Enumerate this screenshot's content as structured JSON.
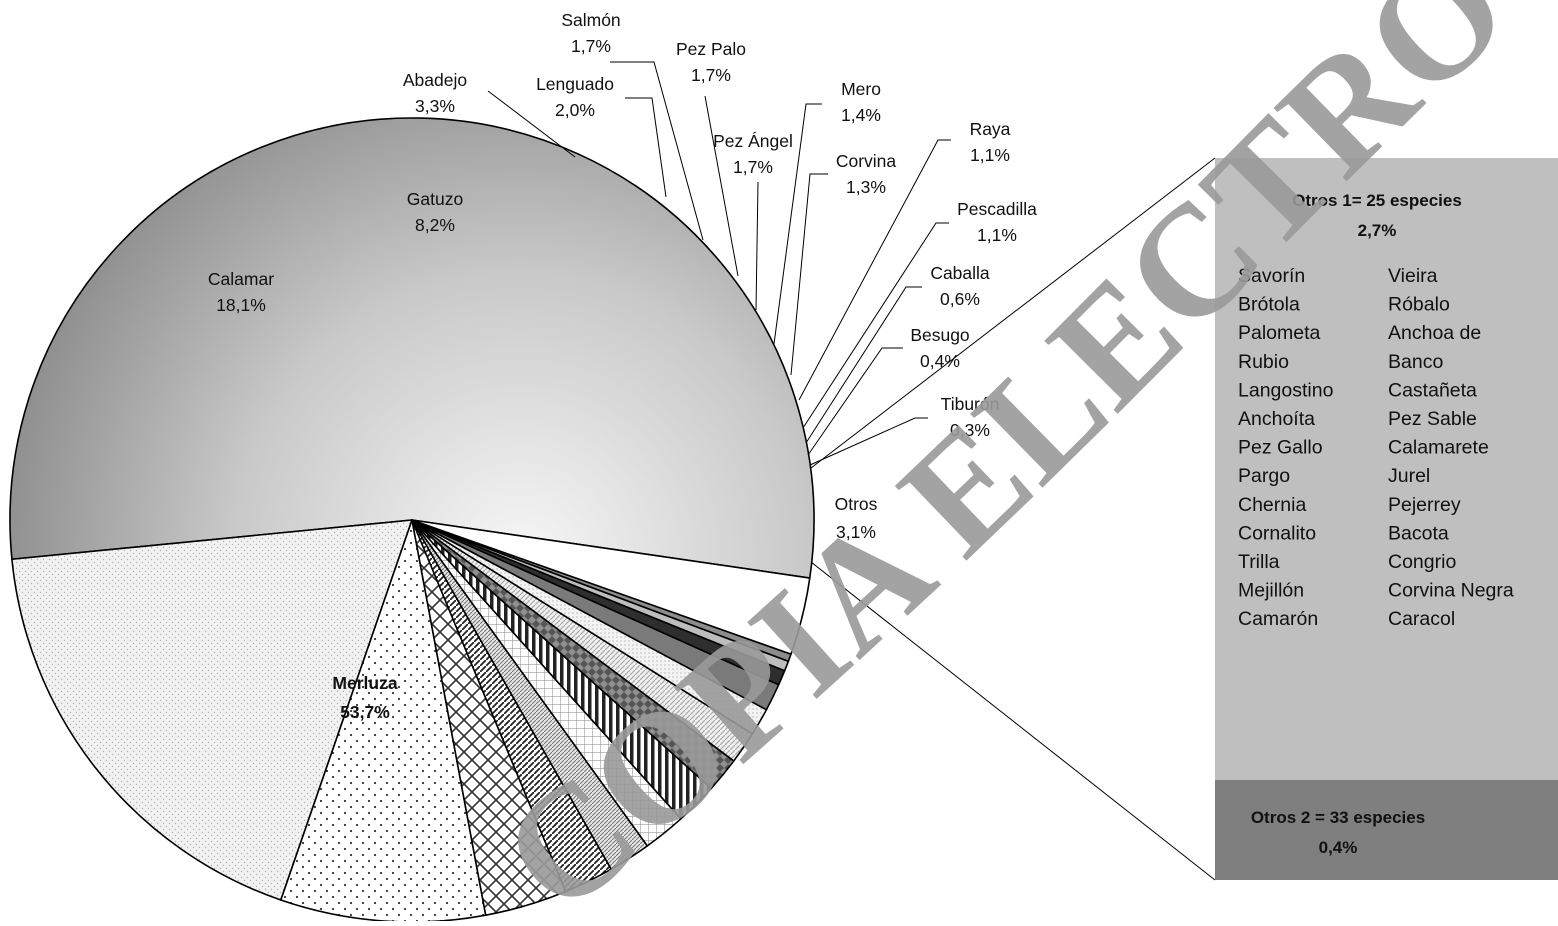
{
  "chart_data": {
    "type": "pie",
    "slices": [
      {
        "label": "Merluza",
        "value": 53.7,
        "display": "53,7%",
        "bold": true,
        "fill": "grad-merluza"
      },
      {
        "label": "Calamar",
        "value": 18.1,
        "display": "18,1%",
        "fill": "pat-fine-dots"
      },
      {
        "label": "Gatuzo",
        "value": 8.2,
        "display": "8,2%",
        "fill": "pat-sparse-dots"
      },
      {
        "label": "Abadejo",
        "value": 3.3,
        "display": "3,3%",
        "fill": "pat-cross-hatch"
      },
      {
        "label": "Lenguado",
        "value": 2.0,
        "display": "2,0%",
        "fill": "pat-diag-lines"
      },
      {
        "label": "Salmón",
        "value": 1.7,
        "display": "1,7%",
        "fill": "pat-dense-diag"
      },
      {
        "label": "Pez Palo",
        "value": 1.7,
        "display": "1,7%",
        "fill": "pat-light-grid"
      },
      {
        "label": "Pez Ángel",
        "value": 1.7,
        "display": "1,7%",
        "fill": "pat-vertical"
      },
      {
        "label": "Mero",
        "value": 1.4,
        "display": "1,4%",
        "fill": "pat-diamond"
      },
      {
        "label": "Corvina",
        "value": 1.3,
        "display": "1,3%",
        "fill": "pat-light-diag"
      },
      {
        "label": "Raya",
        "value": 1.1,
        "display": "1,1%",
        "fill": "pat-light-dots"
      },
      {
        "label": "Pescadilla",
        "value": 1.1,
        "display": "1,1%",
        "fill": "#7a7a7a"
      },
      {
        "label": "Caballa",
        "value": 0.6,
        "display": "0,6%",
        "fill": "#2e2e2e"
      },
      {
        "label": "Besugo",
        "value": 0.4,
        "display": "0,4%",
        "fill": "#bdbdbd"
      },
      {
        "label": "Tiburón",
        "value": 0.3,
        "display": "0,3%",
        "fill": "#8c8c8c"
      },
      {
        "label": "Otros",
        "value": 3.1,
        "display": "3,1%",
        "fill": "#ffffff"
      }
    ],
    "breakdown_box": {
      "otros1_title": "Otros 1= 25 especies",
      "otros1_pct": "2,7%",
      "otros1_color": "#bfbfbf",
      "species_col1": [
        "Savorín",
        "Brótola",
        "Palometa",
        "Rubio",
        "Langostino",
        "Anchoíta",
        "Pez Gallo",
        "Pargo",
        "Chernia",
        "Cornalito",
        "Trilla",
        "Mejillón",
        "Camarón"
      ],
      "species_col2": [
        "Vieira",
        "Róbalo",
        "Anchoa de",
        "Banco",
        "Castañeta",
        "Pez Sable",
        "Calamarete",
        "Jurel",
        "Pejerrey",
        "Bacota",
        "Congrio",
        "Corvina Negra",
        "Caracol"
      ],
      "otros2_title": "Otros 2 = 33 especies",
      "otros2_pct": "0,4%",
      "otros2_color": "#7f7f7f"
    }
  },
  "watermark": "COPIA ELECTRONICA SSP"
}
